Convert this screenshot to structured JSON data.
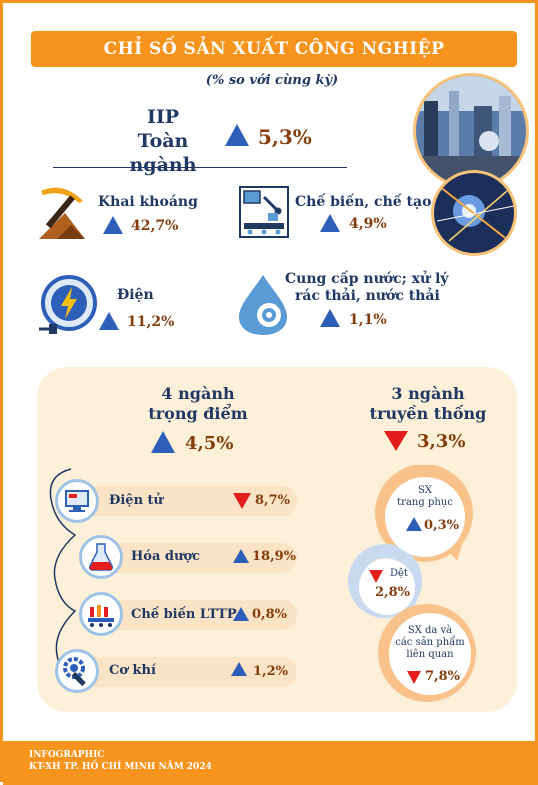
{
  "header": {
    "title": "CHỈ SỐ SẢN XUẤT CÔNG NGHIỆP",
    "subtitle": "(% so với cùng kỳ)"
  },
  "iip": {
    "label_line1": "IIP",
    "label_line2": "Toàn ngành",
    "value": "5,3%",
    "direction": "up"
  },
  "sectors": [
    {
      "label": "Khai khoáng",
      "value": "42,7%",
      "direction": "up",
      "icon": "pickaxe-icon"
    },
    {
      "label": "Chế biến, chế tạo",
      "value": "4,9%",
      "direction": "up",
      "icon": "factory-robot-icon"
    },
    {
      "label": "Điện",
      "value": "11,2%",
      "direction": "up",
      "icon": "lightning-plug-icon"
    },
    {
      "label_line1": "Cung cấp nước; xử lý",
      "label_line2": "rác thải, nước thải",
      "value": "1,1%",
      "direction": "up",
      "icon": "water-gear-icon"
    }
  ],
  "key_industries": {
    "title_line1": "4 ngành",
    "title_line2": "trọng điểm",
    "value": "4,5%",
    "direction": "up",
    "items": [
      {
        "label": "Điện tử",
        "value": "8,7%",
        "direction": "down",
        "icon": "computer-icon"
      },
      {
        "label": "Hóa dược",
        "value": "18,9%",
        "direction": "up",
        "icon": "chemistry-flask-icon"
      },
      {
        "label": "Chế biến LTTP",
        "value": "0,8%",
        "direction": "up",
        "icon": "food-conveyor-icon"
      },
      {
        "label": "Cơ khí",
        "value": "1,2%",
        "direction": "up",
        "icon": "wrench-gear-icon"
      }
    ]
  },
  "traditional_industries": {
    "title_line1": "3 ngành",
    "title_line2": "truyền thống",
    "value": "3,3%",
    "direction": "down",
    "items": [
      {
        "label_line1": "SX",
        "label_line2": "trang phục",
        "value": "0,3%",
        "direction": "up"
      },
      {
        "label_line1": "Dệt",
        "value": "2,8%",
        "direction": "down"
      },
      {
        "label_line1": "SX da và",
        "label_line2": "các sản phẩm",
        "label_line3": "liên quan",
        "value": "7,8%",
        "direction": "down"
      }
    ]
  },
  "footer": {
    "line1": "INFOGRAPHIC",
    "line2": "KT-XH TP. HỒ CHÍ MINH NĂM 2024"
  },
  "colors": {
    "accent": "#f7941d",
    "navy": "#1f3864",
    "value": "#843c0c",
    "up": "#2e5fb8",
    "down": "#e41e1e",
    "panel": "#fdf0d8"
  }
}
